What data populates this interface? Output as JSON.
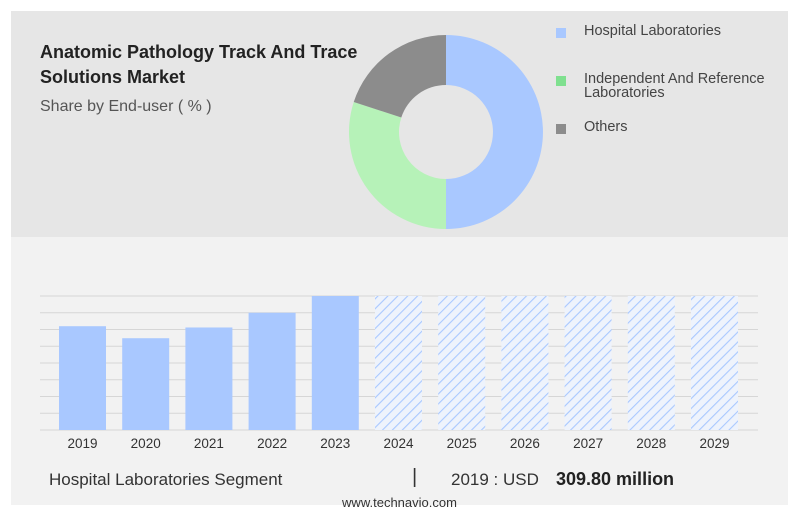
{
  "header": {
    "title": "Anatomic Pathology Track And Trace Solutions Market",
    "subtitle": "Share by End-user ( % )"
  },
  "legend": [
    {
      "label": "Hospital Laboratories",
      "color": "#a9c8ff"
    },
    {
      "label": "Independent And Reference Laboratories",
      "color": "#7fe08f"
    },
    {
      "label": "Others",
      "color": "#8c8c8c"
    }
  ],
  "footer": {
    "segment": "Hospital Laboratories Segment",
    "separator": "|",
    "year_label": "2019 : USD",
    "value": "309.80 million"
  },
  "source": "www.technavio.com",
  "chart_data": [
    {
      "type": "pie",
      "title": "Share by End-user ( % )",
      "donut": true,
      "slices": [
        {
          "name": "Hospital Laboratories",
          "value": 50,
          "color": "#a9c8ff"
        },
        {
          "name": "Independent And Reference Laboratories",
          "value": 30,
          "color": "#b6f2b8"
        },
        {
          "name": "Others",
          "value": 20,
          "color": "#8c8c8c"
        }
      ]
    },
    {
      "type": "bar",
      "categories": [
        "2019",
        "2020",
        "2021",
        "2022",
        "2023",
        "2024",
        "2025",
        "2026",
        "2027",
        "2028",
        "2029"
      ],
      "values": [
        309.8,
        274,
        306,
        350,
        400,
        null,
        null,
        null,
        null,
        null,
        null
      ],
      "forecast": [
        "2024",
        "2025",
        "2026",
        "2027",
        "2028",
        "2029"
      ],
      "series_color": "#a9c8ff",
      "ylim": [
        0,
        400
      ],
      "grid": true
    }
  ]
}
